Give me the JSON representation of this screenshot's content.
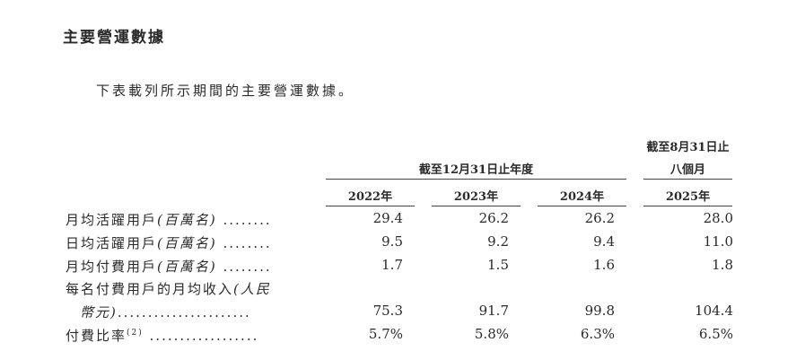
{
  "title": "主要營運數據",
  "intro": "下表載列所示期間的主要營運數據。",
  "table": {
    "group_header_years": "截至12月31日止年度",
    "group_header_period_line1": "截至8月31日止",
    "group_header_period_line2": "八個月",
    "columns": [
      "2022年",
      "2023年",
      "2024年",
      "2025年"
    ],
    "rows": [
      {
        "label": "月均活躍用戶",
        "unit": "(百萬名)",
        "leader": " ........",
        "values": [
          "29.4",
          "26.2",
          "26.2",
          "28.0"
        ]
      },
      {
        "label": "日均活躍用戶",
        "unit": "(百萬名)",
        "leader": " ........",
        "values": [
          "9.5",
          "9.2",
          "9.4",
          "11.0"
        ]
      },
      {
        "label": "月均付費用戶",
        "unit": "(百萬名)",
        "leader": " ........",
        "values": [
          "1.7",
          "1.5",
          "1.6",
          "1.8"
        ]
      },
      {
        "label": "每名付費用戶的月均收入",
        "unit": "(人民",
        "unit_cont": "幣元)",
        "leader": "......................",
        "values": [
          "75.3",
          "91.7",
          "99.8",
          "104.4"
        ]
      },
      {
        "label": "付費比率",
        "footnote": "(2)",
        "leader": " ..................",
        "values": [
          "5.7%",
          "5.8%",
          "6.3%",
          "6.5%"
        ]
      }
    ]
  }
}
